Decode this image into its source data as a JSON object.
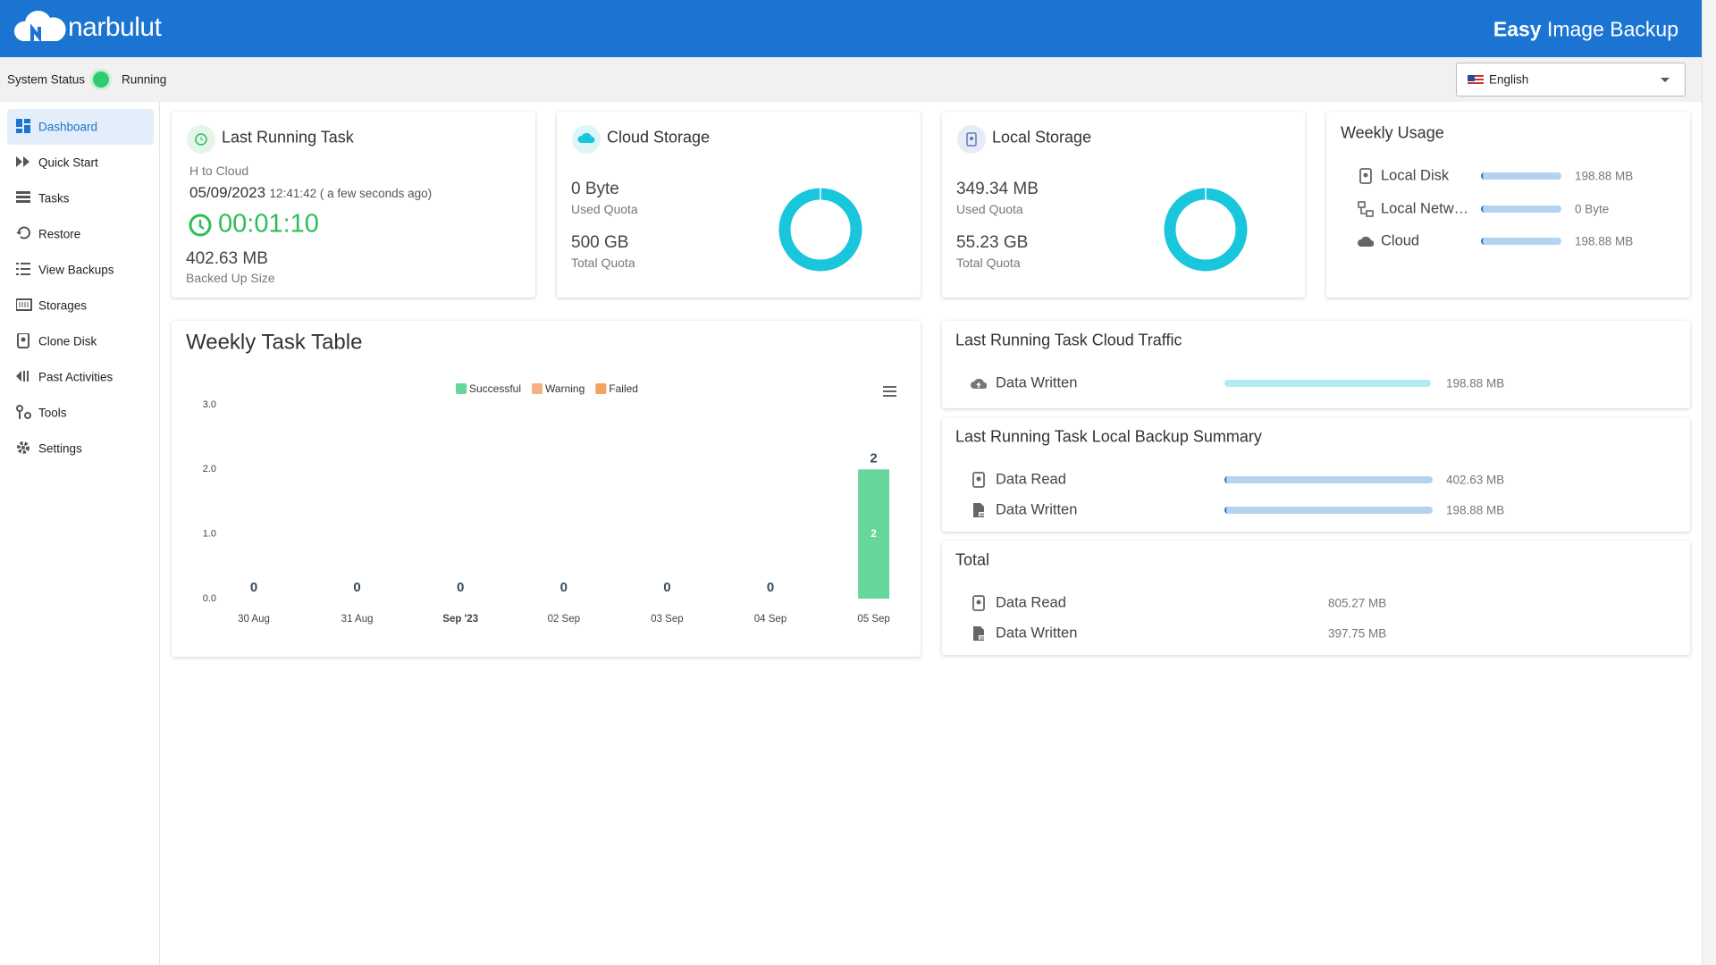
{
  "header": {
    "brand": "narbulut",
    "product_title_bold": "Easy",
    "product_title": "Image Backup"
  },
  "status": {
    "label": "System Status",
    "value": "Running"
  },
  "language": "English",
  "sidebar": [
    "Dashboard",
    "Quick Start",
    "Tasks",
    "Restore",
    "View Backups",
    "Storages",
    "Clone Disk",
    "Past Activities",
    "Tools",
    "Settings"
  ],
  "last_running_task": {
    "title": "Last Running Task",
    "task_name": "H to Cloud",
    "date": "05/09/2023",
    "time": "12:41:42 ( a few seconds ago)",
    "duration": "00:01:10",
    "size": "402.63 MB",
    "size_label": "Backed Up Size"
  },
  "cloud_storage": {
    "title": "Cloud Storage",
    "used": "0 Byte",
    "used_label": "Used Quota",
    "total": "500 GB",
    "total_label": "Total Quota"
  },
  "local_storage": {
    "title": "Local Storage",
    "used": "349.34 MB",
    "used_label": "Used Quota",
    "total": "55.23 GB",
    "total_label": "Total Quota"
  },
  "weekly_usage": {
    "title": "Weekly Usage",
    "rows": [
      {
        "label": "Local Disk",
        "value": "198.88 MB"
      },
      {
        "label": "Local Netw…",
        "value": "0 Byte"
      },
      {
        "label": "Cloud",
        "value": "198.88 MB"
      }
    ]
  },
  "weekly_task_table": {
    "type": "bar",
    "title": "Weekly Task Table",
    "categories": [
      "30 Aug",
      "31 Aug",
      "Sep '23",
      "02 Sep",
      "03 Sep",
      "04 Sep",
      "05 Sep"
    ],
    "series": [
      {
        "name": "Successful",
        "color": "#66d69b",
        "values": [
          0,
          0,
          0,
          0,
          0,
          0,
          2
        ]
      },
      {
        "name": "Warning",
        "color": "#f4b183",
        "values": [
          0,
          0,
          0,
          0,
          0,
          0,
          0
        ]
      },
      {
        "name": "Failed",
        "color": "#f2a35e",
        "values": [
          0,
          0,
          0,
          0,
          0,
          0,
          0
        ]
      }
    ],
    "totals": [
      0,
      0,
      0,
      0,
      0,
      0,
      2
    ],
    "ylim": [
      0,
      3
    ],
    "yticks": [
      {
        "value": 0,
        "label": "0.0"
      },
      {
        "value": 1,
        "label": "1.0"
      },
      {
        "value": 2,
        "label": "2.0"
      },
      {
        "value": 3,
        "label": "3.0"
      }
    ]
  },
  "cloud_traffic": {
    "title": "Last Running Task Cloud Traffic",
    "rows": [
      {
        "label": "Data Written",
        "value": "198.88 MB"
      }
    ]
  },
  "local_backup_summary": {
    "title": "Last Running Task Local Backup Summary",
    "rows": [
      {
        "label": "Data Read",
        "value": "402.63 MB"
      },
      {
        "label": "Data Written",
        "value": "198.88 MB"
      }
    ]
  },
  "total": {
    "title": "Total",
    "rows": [
      {
        "label": "Data Read",
        "value": "805.27 MB"
      },
      {
        "label": "Data Written",
        "value": "397.75 MB"
      }
    ]
  }
}
